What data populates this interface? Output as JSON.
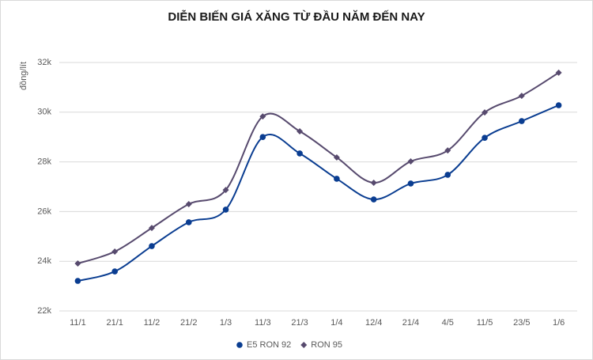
{
  "chart_data": {
    "type": "line",
    "title": "DIỄN BIẾN GIÁ XĂNG TỪ ĐẦU NĂM ĐẾN NAY",
    "y_label": "đồng/lít",
    "categories": [
      "11/1",
      "21/1",
      "11/2",
      "21/2",
      "1/3",
      "11/3",
      "21/3",
      "1/4",
      "12/4",
      "21/4",
      "4/5",
      "11/5",
      "23/5",
      "1/6"
    ],
    "series": [
      {
        "name": "E5 RON 92",
        "color": "#0a3d91",
        "marker": "circle",
        "values": [
          23210,
          23590,
          24610,
          25570,
          26080,
          29000,
          28340,
          27320,
          26490,
          27130,
          27480,
          28970,
          29640,
          30280
        ]
      },
      {
        "name": "RON 95",
        "color": "#574a6e",
        "marker": "diamond",
        "values": [
          23910,
          24390,
          25340,
          26300,
          26870,
          29830,
          29230,
          28180,
          27160,
          28020,
          28460,
          29990,
          30660,
          31590
        ]
      }
    ],
    "ylim": [
      22000,
      32000
    ],
    "yticks": [
      {
        "value": 22000,
        "label": "22k"
      },
      {
        "value": 24000,
        "label": "24k"
      },
      {
        "value": 26000,
        "label": "26k"
      },
      {
        "value": 28000,
        "label": "28k"
      },
      {
        "value": 30000,
        "label": "30k"
      },
      {
        "value": 32000,
        "label": "32k"
      }
    ],
    "grid": true,
    "smooth": true,
    "legend": "bottom"
  }
}
